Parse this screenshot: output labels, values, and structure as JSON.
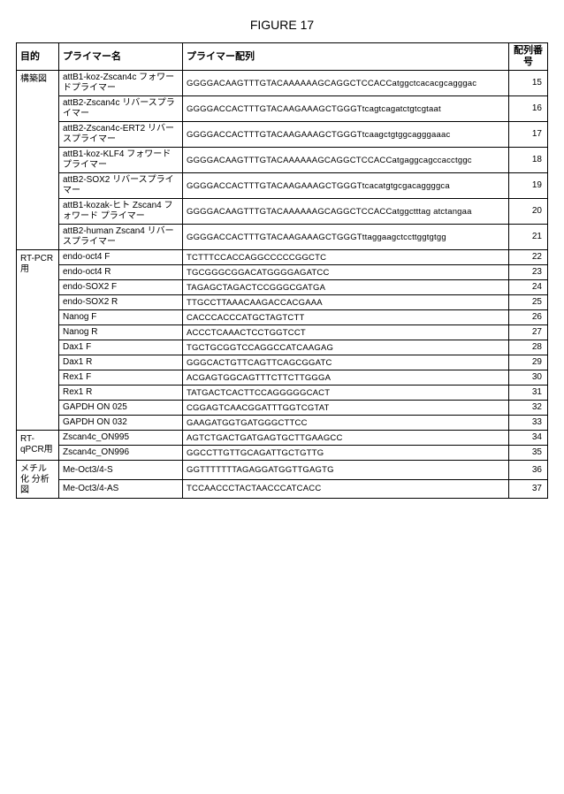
{
  "figure_title": "FIGURE 17",
  "headers": {
    "purpose": "目的",
    "primer_name": "プライマー名",
    "primer_seq": "プライマー配列",
    "seq_id": "配列番号"
  },
  "groups": [
    {
      "label": "構築図",
      "rows": [
        {
          "name": "attB1-koz-Zscan4c フォワードプライマー",
          "seq": "GGGGACAAGTTTGTACAAAAAAGCAGGCTCCACCatggctcacacgcagggac",
          "id": "15"
        },
        {
          "name": "attB2-Zscan4c リバースプライマー",
          "seq": "GGGGACCACTTTGTACAAGAAAGCTGGGTtcagtcagatctgtcgtaat",
          "id": "16"
        },
        {
          "name": "attB2-Zscan4c-ERT2 リバースプライマー",
          "seq": "GGGGACCACTTTGTACAAGAAAGCTGGGTtcaagctgtggcagggaaac",
          "id": "17"
        },
        {
          "name": "attB1-koz-KLF4 フォワードプライマー",
          "seq": "GGGGACAAGTTTGTACAAAAAAGCAGGCTCCACCatgaggcagccacctggc",
          "id": "18"
        },
        {
          "name": "attB2-SOX2 リバースプライマー",
          "seq": "GGGGACCACTTTGTACAAGAAAGCTGGGTtcacatgtgcgacaggggca",
          "id": "19"
        },
        {
          "name": "attB1-kozak-ヒト Zscan4 フォワード プライマー",
          "seq": "GGGGACAAGTTTGTACAAAAAAGCAGGCTCCACCatggctttag atctangaa",
          "id": "20"
        },
        {
          "name": "attB2-human Zscan4 リバースプライマー",
          "seq": "GGGGACCACTTTGTACAAGAAAGCTGGGTttaggaagctccttggtgtgg",
          "id": "21"
        }
      ]
    },
    {
      "label": "RT-PCR用",
      "rows": [
        {
          "name": "endo-oct4 F",
          "seq": "TCTTTCCACCAGGCCCCCGGCTC",
          "id": "22"
        },
        {
          "name": "endo-oct4 R",
          "seq": "TGCGGGCGGACATGGGGAGATCC",
          "id": "23"
        },
        {
          "name": "endo-SOX2 F",
          "seq": "TAGAGCTAGACTCCGGGCGATGA",
          "id": "24"
        },
        {
          "name": "endo-SOX2 R",
          "seq": "TTGCCTTAAACAAGACCACGAAA",
          "id": "25"
        },
        {
          "name": "Nanog F",
          "seq": "CACCCACCCATGCTAGTCTT",
          "id": "26"
        },
        {
          "name": "Nanog R",
          "seq": "ACCCTCAAACTCCTGGTCCT",
          "id": "27"
        },
        {
          "name": "Dax1 F",
          "seq": "TGCTGCGGTCCAGGCCATCAAGAG",
          "id": "28"
        },
        {
          "name": "Dax1 R",
          "seq": "GGGCACTGTTCAGTTCAGCGGATC",
          "id": "29"
        },
        {
          "name": "Rex1 F",
          "seq": "ACGAGTGGCAGTTTCTTCTTGGGA",
          "id": "30"
        },
        {
          "name": "Rex1 R",
          "seq": "TATGACTCACTTCCAGGGGGCACT",
          "id": "31"
        },
        {
          "name": "GAPDH ON 025",
          "seq": "CGGAGTCAACGGATTTGGTCGTAT",
          "id": "32"
        },
        {
          "name": "GAPDH ON 032",
          "seq": "GAAGATGGTGATGGGCTTCC",
          "id": "33"
        }
      ]
    },
    {
      "label": "RT-qPCR用",
      "rows": [
        {
          "name": "Zscan4c_ON995",
          "seq": "AGTCTGACTGATGAGTGCTTGAAGCC",
          "id": "34"
        },
        {
          "name": "Zscan4c_ON996",
          "seq": "GGCCTTGTTGCAGATTGCTGTTG",
          "id": "35"
        }
      ]
    },
    {
      "label": "メチル化 分析図",
      "rows": [
        {
          "name": "Me-Oct3/4-S",
          "seq": "GGTTTTTTTAGAGGATGGTTGAGTG",
          "id": "36"
        },
        {
          "name": "Me-Oct3/4-AS",
          "seq": "TCCAACCCTACTAACCCATCACC",
          "id": "37"
        }
      ]
    }
  ]
}
